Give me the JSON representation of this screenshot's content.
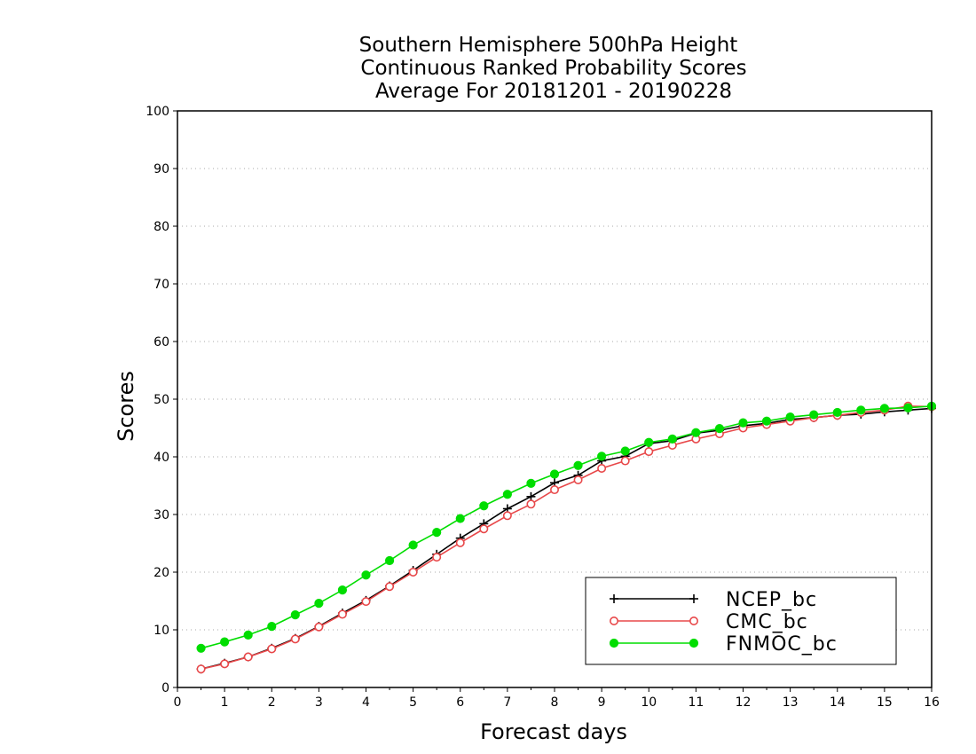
{
  "chart_data": {
    "type": "line",
    "title_lines": [
      "Southern Hemisphere 500hPa Height",
      "Continuous Ranked Probability Scores",
      "Average For 20181201 - 20190228"
    ],
    "xlabel": "Forecast days",
    "ylabel": "Scores",
    "xlim": [
      0,
      16
    ],
    "ylim": [
      0,
      100
    ],
    "xticks": [
      "0",
      "1",
      "2",
      "3",
      "4",
      "5",
      "6",
      "7",
      "8",
      "9",
      "10",
      "11",
      "12",
      "13",
      "14",
      "15",
      "16"
    ],
    "yticks": [
      "0",
      "10",
      "20",
      "30",
      "40",
      "50",
      "60",
      "70",
      "80",
      "90",
      "100"
    ],
    "grid": "horizontal dotted",
    "legend_position": "bottom-right",
    "x": [
      0.5,
      1,
      1.5,
      2,
      2.5,
      3,
      3.5,
      4,
      4.5,
      5,
      5.5,
      6,
      6.5,
      7,
      7.5,
      8,
      8.5,
      9,
      9.5,
      10,
      10.5,
      11,
      11.5,
      12,
      12.5,
      13,
      13.5,
      14,
      14.5,
      15,
      15.5,
      16
    ],
    "series": [
      {
        "name": "NCEP_bc",
        "color": "#000000",
        "marker": "plus",
        "values": [
          3.2,
          4.2,
          5.3,
          6.8,
          8.5,
          10.6,
          12.9,
          15.1,
          17.6,
          20.3,
          23.1,
          25.9,
          28.4,
          31.0,
          33.1,
          35.5,
          36.8,
          39.3,
          40.1,
          42.3,
          42.8,
          44.1,
          44.6,
          45.4,
          45.8,
          46.5,
          46.8,
          47.2,
          47.4,
          47.8,
          48.1,
          48.4
        ]
      },
      {
        "name": "CMC_bc",
        "color": "#e8484a",
        "marker": "open-circle",
        "values": [
          3.2,
          4.1,
          5.3,
          6.7,
          8.4,
          10.5,
          12.7,
          14.9,
          17.5,
          20.0,
          22.6,
          25.1,
          27.5,
          29.8,
          31.8,
          34.3,
          36.0,
          38.0,
          39.3,
          40.9,
          42.0,
          43.1,
          44.0,
          45.0,
          45.6,
          46.2,
          46.8,
          47.2,
          47.7,
          48.1,
          48.8,
          48.7
        ]
      },
      {
        "name": "FNMOC_bc",
        "color": "#00dd00",
        "marker": "filled-circle",
        "values": [
          6.8,
          7.9,
          9.1,
          10.6,
          12.6,
          14.6,
          16.9,
          19.5,
          22.0,
          24.7,
          26.9,
          29.3,
          31.5,
          33.5,
          35.4,
          37.0,
          38.5,
          40.1,
          41.0,
          42.5,
          43.1,
          44.2,
          44.9,
          45.9,
          46.2,
          46.9,
          47.3,
          47.7,
          48.1,
          48.4,
          48.5,
          48.8
        ]
      }
    ]
  }
}
